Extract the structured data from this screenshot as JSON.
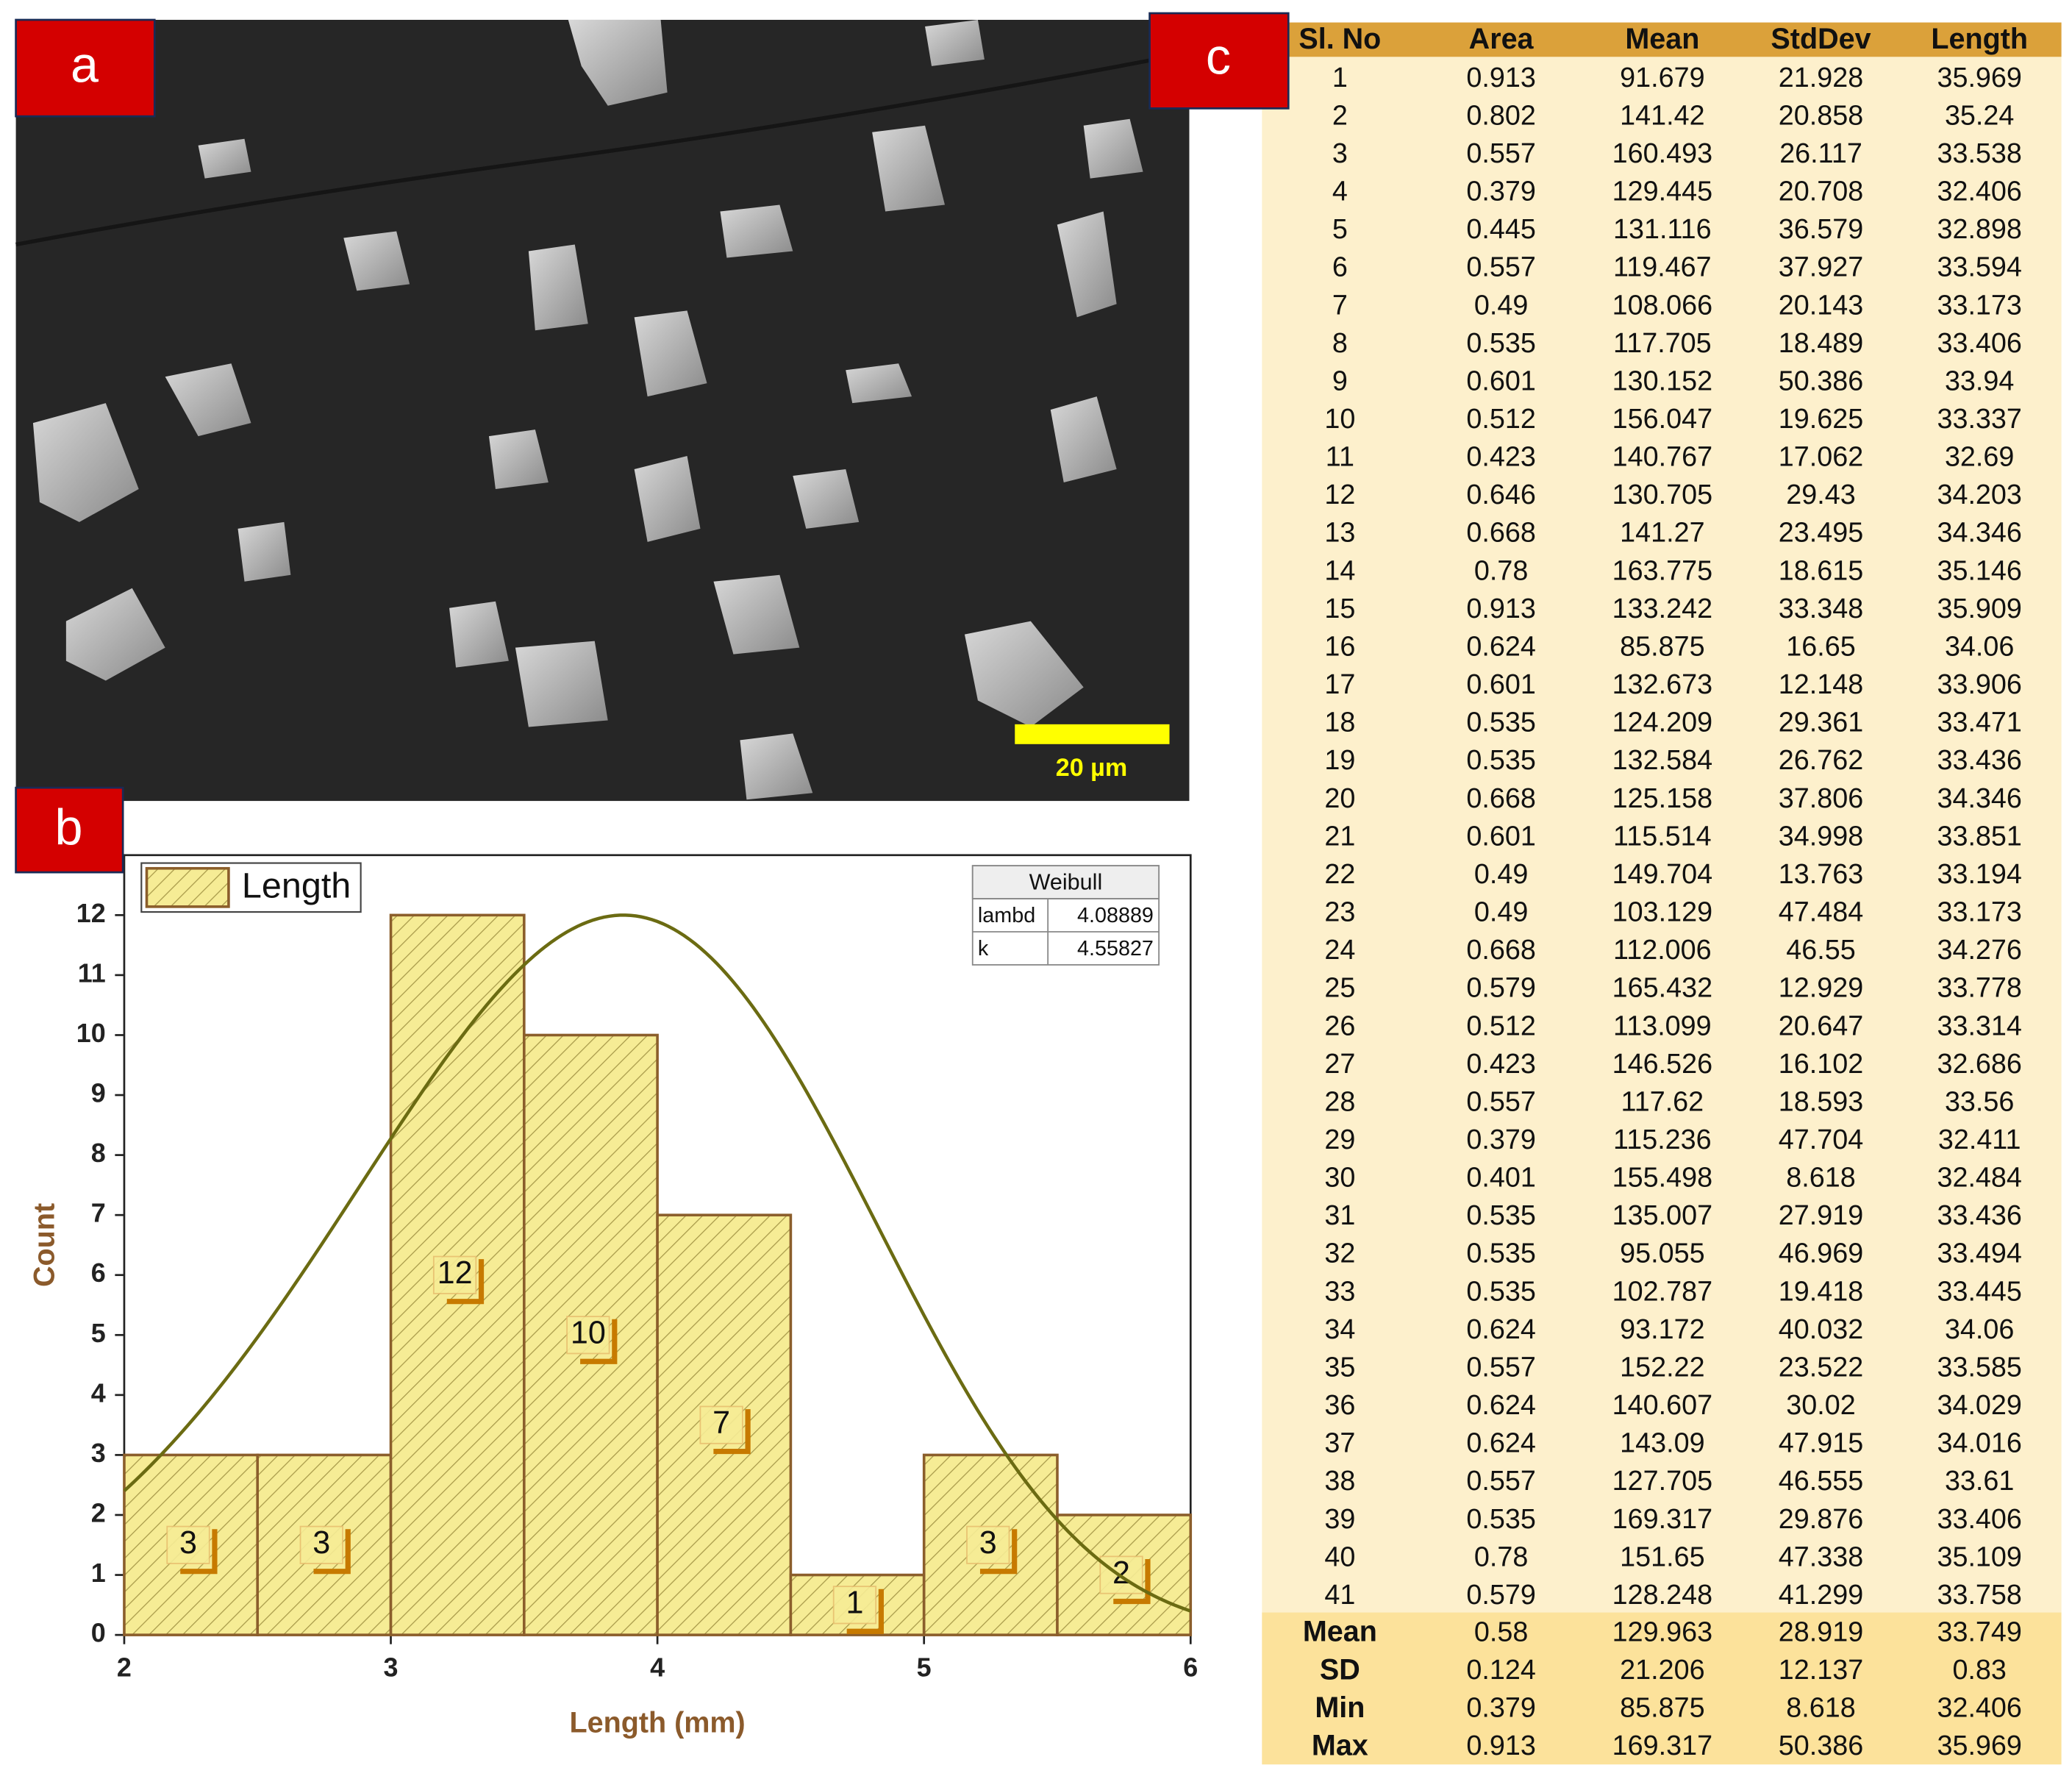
{
  "panels": {
    "a": "a",
    "b": "b",
    "c": "c"
  },
  "image": {
    "scale_bar": "20 µm"
  },
  "chart_data": {
    "type": "histogram",
    "bins": [
      2,
      2.5,
      3,
      3.5,
      4,
      4.5,
      5,
      5.5,
      6
    ],
    "series": [
      {
        "name": "Length",
        "color": "#f6ec95",
        "edge_color": "#8b5e2b",
        "values": [
          3,
          3,
          12,
          10,
          7,
          1,
          3,
          2
        ]
      }
    ],
    "xlabel": "Length (mm)",
    "ylabel": "Count",
    "xlim": [
      2,
      6
    ],
    "ylim": [
      0,
      13
    ],
    "xticks": [
      2,
      3,
      4,
      5,
      6
    ],
    "yticks": [
      0,
      1,
      2,
      3,
      4,
      5,
      6,
      7,
      8,
      9,
      10,
      11,
      12
    ],
    "legend_position": "upper left",
    "fit": {
      "title": "Weibull",
      "color": "#6b6b12",
      "params": [
        {
          "name": "lambd",
          "value": 4.08889
        },
        {
          "name": "k",
          "value": 4.55827
        }
      ]
    }
  },
  "table": {
    "header": [
      "Sl. No",
      "Area",
      "Mean",
      "StdDev",
      "Length"
    ],
    "rows": [
      [
        1,
        0.913,
        91.679,
        21.928,
        35.969
      ],
      [
        2,
        0.802,
        141.42,
        20.858,
        35.24
      ],
      [
        3,
        0.557,
        160.493,
        26.117,
        33.538
      ],
      [
        4,
        0.379,
        129.445,
        20.708,
        32.406
      ],
      [
        5,
        0.445,
        131.116,
        36.579,
        32.898
      ],
      [
        6,
        0.557,
        119.467,
        37.927,
        33.594
      ],
      [
        7,
        0.49,
        108.066,
        20.143,
        33.173
      ],
      [
        8,
        0.535,
        117.705,
        18.489,
        33.406
      ],
      [
        9,
        0.601,
        130.152,
        50.386,
        33.94
      ],
      [
        10,
        0.512,
        156.047,
        19.625,
        33.337
      ],
      [
        11,
        0.423,
        140.767,
        17.062,
        32.69
      ],
      [
        12,
        0.646,
        130.705,
        29.43,
        34.203
      ],
      [
        13,
        0.668,
        141.27,
        23.495,
        34.346
      ],
      [
        14,
        0.78,
        163.775,
        18.615,
        35.146
      ],
      [
        15,
        0.913,
        133.242,
        33.348,
        35.909
      ],
      [
        16,
        0.624,
        85.875,
        16.65,
        34.06
      ],
      [
        17,
        0.601,
        132.673,
        12.148,
        33.906
      ],
      [
        18,
        0.535,
        124.209,
        29.361,
        33.471
      ],
      [
        19,
        0.535,
        132.584,
        26.762,
        33.436
      ],
      [
        20,
        0.668,
        125.158,
        37.806,
        34.346
      ],
      [
        21,
        0.601,
        115.514,
        34.998,
        33.851
      ],
      [
        22,
        0.49,
        149.704,
        13.763,
        33.194
      ],
      [
        23,
        0.49,
        103.129,
        47.484,
        33.173
      ],
      [
        24,
        0.668,
        112.006,
        46.55,
        34.276
      ],
      [
        25,
        0.579,
        165.432,
        12.929,
        33.778
      ],
      [
        26,
        0.512,
        113.099,
        20.647,
        33.314
      ],
      [
        27,
        0.423,
        146.526,
        16.102,
        32.686
      ],
      [
        28,
        0.557,
        117.62,
        18.593,
        33.56
      ],
      [
        29,
        0.379,
        115.236,
        47.704,
        32.411
      ],
      [
        30,
        0.401,
        155.498,
        8.618,
        32.484
      ],
      [
        31,
        0.535,
        135.007,
        27.919,
        33.436
      ],
      [
        32,
        0.535,
        95.055,
        46.969,
        33.494
      ],
      [
        33,
        0.535,
        102.787,
        19.418,
        33.445
      ],
      [
        34,
        0.624,
        93.172,
        40.032,
        34.06
      ],
      [
        35,
        0.557,
        152.22,
        23.522,
        33.585
      ],
      [
        36,
        0.624,
        140.607,
        30.02,
        34.029
      ],
      [
        37,
        0.624,
        143.09,
        47.915,
        34.016
      ],
      [
        38,
        0.557,
        127.705,
        46.555,
        33.61
      ],
      [
        39,
        0.535,
        169.317,
        29.876,
        33.406
      ],
      [
        40,
        0.78,
        151.65,
        47.338,
        35.109
      ],
      [
        41,
        0.579,
        128.248,
        41.299,
        33.758
      ]
    ],
    "summary": [
      [
        "Mean",
        0.58,
        129.963,
        28.919,
        33.749
      ],
      [
        "SD",
        0.124,
        21.206,
        12.137,
        0.83
      ],
      [
        "Min",
        0.379,
        85.875,
        8.618,
        32.406
      ],
      [
        "Max",
        0.913,
        169.317,
        50.386,
        35.969
      ]
    ]
  }
}
